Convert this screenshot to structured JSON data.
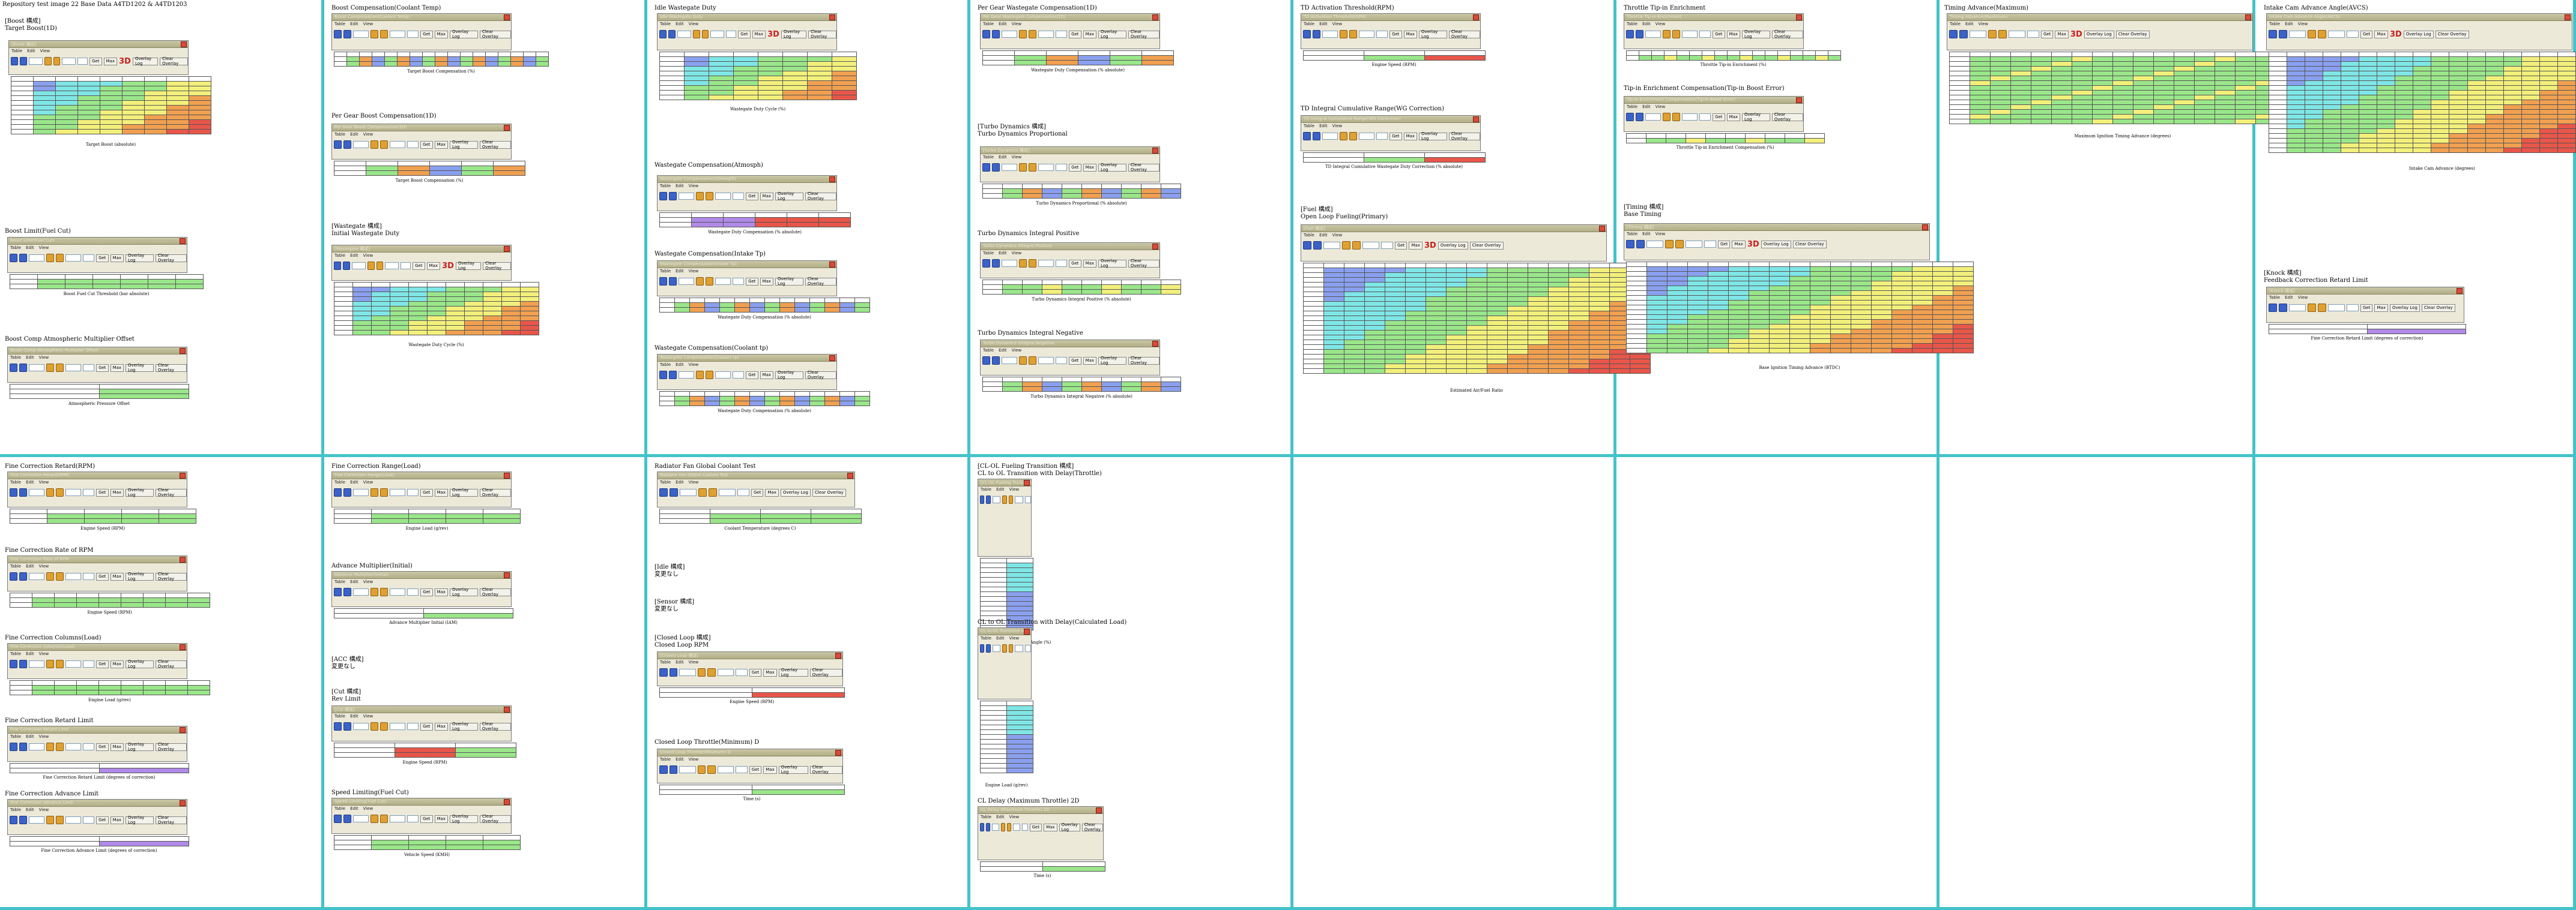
{
  "header": {
    "line1": "Repository test image 22  Base Data  A4TD1202 & A4TD1203"
  },
  "colors": {
    "divider": "#43c3c9",
    "red": "#e8564a",
    "orange": "#f0a050",
    "yellow": "#f2f07a",
    "green": "#9ae68a",
    "cyan": "#7fe6e6",
    "blue": "#8aa0ef",
    "purple": "#b08ae8"
  },
  "sections": [
    {
      "title": "[Boost 構成]",
      "subtitle": "Target Boost(1D)"
    },
    {
      "title": "Boost Compensation(Coolant Temp)",
      "subtitle": ""
    },
    {
      "title": "Idle Wastegate Duty",
      "subtitle": ""
    },
    {
      "title": "Per Gear Wastegate Compensation(1D)",
      "subtitle": ""
    },
    {
      "title": "TD Activation Threshold(RPM)",
      "subtitle": ""
    },
    {
      "title": "Throttle Tip-in Enrichment",
      "subtitle": ""
    },
    {
      "title": "Timing Advance(Maximum)",
      "subtitle": ""
    },
    {
      "title": "Intake Cam Advance Angle(AVCS)",
      "subtitle": ""
    },
    {
      "title": "Boost Limit(Fuel Cut)",
      "subtitle": ""
    },
    {
      "title": "Per Gear Boost Compensation(1D)",
      "subtitle": ""
    },
    {
      "title": "[Wastegate 構成]",
      "subtitle": "Initial Wastegate Duty"
    },
    {
      "title": "Wastegate Compensation(Atmosph)",
      "subtitle": ""
    },
    {
      "title": "[Turbo Dynamics 構成]",
      "subtitle": "Turbo Dynamics Proportional"
    },
    {
      "title": "TD Integral Cumulative Range(WG Correction)",
      "subtitle": ""
    },
    {
      "title": "Tip-in Enrichment Compensation(Tip-in Boost Error)",
      "subtitle": ""
    },
    {
      "title": "[Fuel 構成]",
      "subtitle": "Open Loop Fueling(Primary)"
    },
    {
      "title": "[Timing 構成]",
      "subtitle": "Base Timing"
    },
    {
      "title": "[Knock 構成]",
      "subtitle": "Feedback Correction Retard Limit"
    },
    {
      "title": "Boost Comp Atmospheric Multiplier Offset",
      "subtitle": ""
    },
    {
      "title": "Wastegate Compensation(Intake Tp)",
      "subtitle": ""
    },
    {
      "title": "Turbo Dynamics Integral Positive",
      "subtitle": ""
    },
    {
      "title": "Turbo Dynamics Integral Negative",
      "subtitle": ""
    },
    {
      "title": "Wastegate Compensation(Coolant tp)",
      "subtitle": ""
    },
    {
      "title": "Fine Correction Retard(RPM)",
      "subtitle": ""
    },
    {
      "title": "Fine Correction Range(Load)",
      "subtitle": ""
    },
    {
      "title": "Radiator Fan Global Coolant Test",
      "subtitle": ""
    },
    {
      "title": "[CL-OL Fueling Transition 構成]",
      "subtitle": "CL to OL Transition with Delay(Throttle)"
    },
    {
      "title": "Fine Correction Rate of RPM",
      "subtitle": ""
    },
    {
      "title": "Advance Multiplier(Initial)",
      "subtitle": ""
    },
    {
      "title": "[Idle 構成]",
      "subtitle": "変更なし"
    },
    {
      "title": "[Sensor 構成]",
      "subtitle": "変更なし"
    },
    {
      "title": "CL to OL Transition with Delay(Calculated Load)",
      "subtitle": ""
    },
    {
      "title": "Fine Correction Columns(Load)",
      "subtitle": ""
    },
    {
      "title": "[ACC 構成]",
      "subtitle": "変更なし"
    },
    {
      "title": "[Closed Loop 構成]",
      "subtitle": "Closed Loop RPM"
    },
    {
      "title": "Fine Correction Retard Limit",
      "subtitle": ""
    },
    {
      "title": "[Cut 構成]",
      "subtitle": "Rev Limit"
    },
    {
      "title": "Closed Loop Throttle(Minimum) D",
      "subtitle": ""
    },
    {
      "title": "CL Delay (Maximum Throttle) 2D",
      "subtitle": ""
    },
    {
      "title": "Fine Correction Advance Limit",
      "subtitle": ""
    },
    {
      "title": "Speed Limiting(Fuel Cut)",
      "subtitle": ""
    }
  ],
  "window": {
    "menu": [
      "Table",
      "Edit",
      "View"
    ],
    "button_get": "Get",
    "button_max": "Max",
    "checkbox": "Overlay Log",
    "button_clear": "Clear Overlay",
    "indicator_3d": "3D"
  },
  "captions": {
    "target_boost": "Target Boost (absolute)",
    "boost_comp_coolant": "Target Boost Compensation (%)",
    "idle_wg": "Wastegate Duty Cycle (%)",
    "per_gear_wg": "Wastegate Duty Compensation (% absolute)",
    "td_activation": "Engine Speed (RPM)",
    "tipin": "Throttle Tip-in Enrichment (%)",
    "timing_max": "Maximum Ignition Timing Advance (degrees)",
    "avcs": "Intake Cam Advance (degrees)",
    "boost_limit": "Boost Fuel Cut Threshold (bar absolute)",
    "per_gear_boost": "Target Boost Compensation (%)",
    "initial_wg": "Wastegate Duty Cycle (%)",
    "wg_atm": "Wastegate Duty Compensation (% absolute)",
    "td_prop": "Turbo Dynamics Proportional (% absolute)",
    "td_integral_range": "TD Integral Cumulative Wastegate Duty Correction (% absolute)",
    "tipin_comp": "Throttle Tip-in Enrichment Compensation (%)",
    "open_loop": "Estimated Air/Fuel Ratio",
    "base_timing": "Base Ignition Timing Advance (BTDC)",
    "knock_retard": "Fine Correction Retard Limit (degrees of correction)",
    "atm_offset": "Atmospheric Pressure Offset",
    "wg_intake": "Wastegate Duty Compensation (% absolute)",
    "td_pos": "Turbo Dynamics Integral Positive (% absolute)",
    "td_neg": "Turbo Dynamics Integral Negative (% absolute)",
    "wg_coolant": "Wastegate Duty Compensation (% absolute)",
    "fine_rpm": "Engine Speed (RPM)",
    "fine_load": "Engine Load (g/rev)",
    "fan": "Coolant Temperature (degrees C)",
    "cl_ol_throttle": "Throttle Plate Opening Angle (%)",
    "fine_rate": "Engine Speed (RPM)",
    "adv_mult": "Advance Multiplier Initial (IAM)",
    "cl_ol_load": "Engine Load (g/rev)",
    "fine_cols": "Engine Load (g/rev)",
    "cl_rpm": "Engine Speed (RPM)",
    "fine_limit": "Fine Correction Retard Limit (degrees of correction)",
    "rev_limit": "Engine Speed (RPM)",
    "cl_throttle": "Time (s)",
    "fine_adv": "Fine Correction Advance Limit (degrees of correction)",
    "speed_limit": "Vehicle Speed (KMH)"
  }
}
